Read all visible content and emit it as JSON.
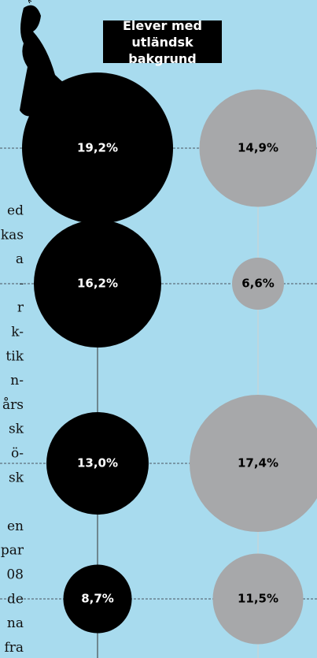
{
  "chart_data": {
    "type": "bubble",
    "header": "Elever med utländsk bakgrund",
    "series": [
      {
        "color": "#000000",
        "values": [
          19.2,
          16.2,
          13.0,
          8.7
        ],
        "value_labels": [
          "19,2%",
          "16,2%",
          "13,0%",
          "8,7%"
        ]
      },
      {
        "name": "Elever med utländsk bakgrund",
        "color": "#a7a8aa",
        "values": [
          14.9,
          6.6,
          17.4,
          11.5
        ],
        "value_labels": [
          "14,9%",
          "6,6%",
          "17,4%",
          "11,5%"
        ]
      }
    ]
  },
  "article": {
    "lines": [
      "ed",
      "kas",
      "a",
      "-",
      "r",
      "k-",
      "tik",
      "n-",
      "års",
      "sk",
      "ö-",
      "sk",
      "",
      "en",
      "par",
      "08",
      "de",
      "na",
      "fra"
    ]
  }
}
